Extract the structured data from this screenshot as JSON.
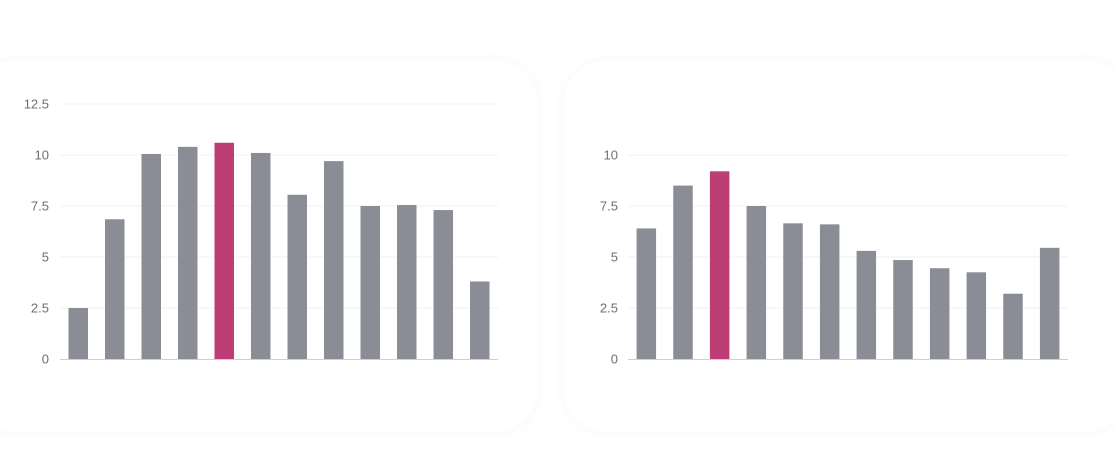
{
  "colors": {
    "bar": "#8a8c96",
    "highlight": "#bd3e74",
    "grid": "#f2f2f4",
    "axis": "#cfcfd4",
    "tick_text": "#6e6e78"
  },
  "chart_data": [
    {
      "type": "bar",
      "title": "",
      "xlabel": "",
      "ylabel": "",
      "grid": true,
      "ylim": [
        0,
        12.5
      ],
      "yticks": [
        0,
        2.5,
        5,
        7.5,
        10,
        12.5
      ],
      "ytick_labels": [
        "0",
        "2.5",
        "5",
        "7.5",
        "10",
        "12.5"
      ],
      "categories": [
        "",
        "",
        "",
        "",
        "",
        "",
        "",
        "",
        "",
        "",
        "",
        ""
      ],
      "values": [
        2.5,
        6.85,
        10.05,
        10.4,
        10.6,
        10.1,
        8.05,
        9.7,
        7.5,
        7.55,
        7.3,
        3.8
      ],
      "highlight_index": 4
    },
    {
      "type": "bar",
      "title": "",
      "xlabel": "",
      "ylabel": "",
      "grid": true,
      "ylim": [
        0,
        12.5
      ],
      "yticks": [
        0,
        2.5,
        5,
        7.5,
        10
      ],
      "ytick_labels": [
        "0",
        "2.5",
        "5",
        "7.5",
        "10"
      ],
      "categories": [
        "",
        "",
        "",
        "",
        "",
        "",
        "",
        "",
        "",
        "",
        "",
        ""
      ],
      "values": [
        6.4,
        8.5,
        9.2,
        7.5,
        6.65,
        6.6,
        5.3,
        4.85,
        4.45,
        4.25,
        3.2,
        5.45
      ],
      "highlight_index": 2
    }
  ]
}
